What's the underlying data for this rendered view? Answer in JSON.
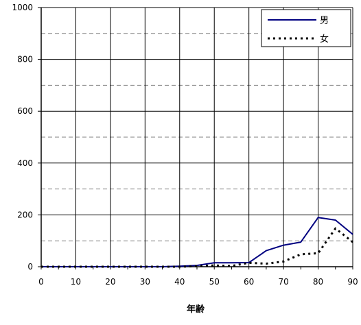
{
  "chart_data": {
    "type": "line",
    "xlabel": "年齢",
    "ylabel": "",
    "xlim": [
      0,
      90
    ],
    "ylim": [
      0,
      1000
    ],
    "x_ticks": [
      0,
      10,
      20,
      30,
      40,
      50,
      60,
      70,
      80,
      90
    ],
    "y_ticks": [
      0,
      200,
      400,
      600,
      800,
      1000
    ],
    "x_tick_labels": [
      "0",
      "10",
      "20",
      "30",
      "40",
      "50",
      "60",
      "70",
      "80",
      "90"
    ],
    "y_tick_labels": [
      "0",
      "200",
      "400",
      "600",
      "800",
      "1000"
    ],
    "grid": {
      "solid_horizontal": [
        0,
        200,
        400,
        600,
        800,
        1000
      ],
      "dashed_horizontal": [
        100,
        300,
        500,
        700,
        900
      ],
      "vertical": [
        10,
        20,
        30,
        40,
        50,
        60,
        70,
        80,
        90
      ]
    },
    "legend_position": "top-right",
    "x": [
      0,
      5,
      10,
      15,
      20,
      25,
      30,
      35,
      40,
      45,
      50,
      55,
      60,
      65,
      70,
      75,
      80,
      85,
      90
    ],
    "series": [
      {
        "name": "男",
        "style": "solid",
        "color": "#000080",
        "values": [
          0,
          0,
          0,
          0,
          0,
          0,
          0,
          0,
          2,
          5,
          15,
          15,
          16,
          62,
          83,
          95,
          190,
          180,
          125
        ]
      },
      {
        "name": "女",
        "style": "dotted",
        "color": "#000000",
        "values": [
          0,
          0,
          0,
          0,
          0,
          0,
          0,
          0,
          0,
          2,
          5,
          3,
          15,
          12,
          20,
          48,
          52,
          148,
          95
        ]
      }
    ]
  }
}
